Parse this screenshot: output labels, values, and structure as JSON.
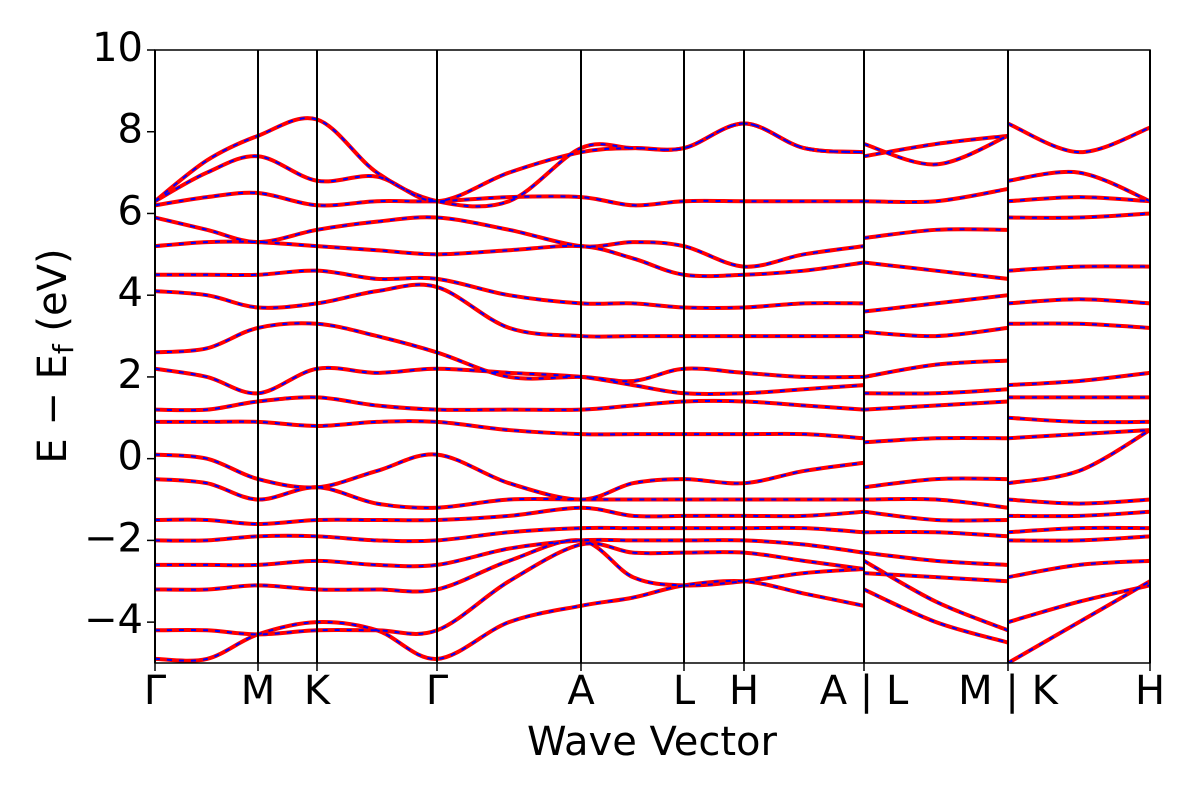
{
  "chart_data": {
    "type": "line",
    "xlabel": "Wave Vector",
    "ylabel": [
      "E − E",
      "f",
      " (eV)"
    ],
    "line_color": "#ff0000",
    "dash_color": "#0000ff",
    "xlim": [
      0,
      9.95
    ],
    "ylim": [
      -5,
      10
    ],
    "xticks": [
      {
        "value": 0,
        "label": "Γ"
      },
      {
        "value": 1.03,
        "label": "M"
      },
      {
        "value": 1.62,
        "label": "K"
      },
      {
        "value": 2.82,
        "label": "Γ"
      },
      {
        "value": 4.26,
        "label": "A"
      },
      {
        "value": 5.29,
        "label": "L"
      },
      {
        "value": 5.89,
        "label": "H"
      },
      {
        "value": 7.09,
        "label": "A | L"
      },
      {
        "value": 8.53,
        "label": "M | K"
      },
      {
        "value": 9.95,
        "label": "H"
      }
    ],
    "yticks": [
      {
        "value": -4,
        "label": "−4"
      },
      {
        "value": -2,
        "label": "−2"
      },
      0,
      2,
      4,
      6,
      8,
      10
    ],
    "x": [
      0,
      0.52,
      1.03,
      1.62,
      2.22,
      2.82,
      3.54,
      4.26,
      4.78,
      5.29,
      5.89,
      6.49,
      7.09,
      7.09,
      7.09,
      7.81,
      8.53,
      8.53,
      8.53,
      9.24,
      9.95
    ],
    "series": [
      {
        "values": [
          -4.9,
          -4.9,
          -4.3,
          -4.0,
          -4.2,
          -4.9,
          -4.0,
          -3.6,
          -3.4,
          -3.1,
          -3.0,
          -3.3,
          -3.6,
          null,
          -3.2,
          -4.0,
          -4.5,
          null,
          -5.0,
          -4.0,
          -3.0
        ]
      },
      {
        "values": [
          -4.2,
          -4.2,
          -4.3,
          -4.2,
          -4.2,
          -4.2,
          -3.0,
          -2.1,
          -2.3,
          -2.3,
          -2.3,
          -2.5,
          -2.7,
          null,
          -2.8,
          -2.9,
          -3.0,
          null,
          -4.0,
          -3.5,
          -3.1
        ]
      },
      {
        "values": [
          -3.2,
          -3.2,
          -3.1,
          -3.2,
          -3.2,
          -3.2,
          -2.5,
          -2.0,
          -2.9,
          -3.1,
          -3.0,
          -2.8,
          -2.7,
          null,
          -2.5,
          -3.5,
          -4.2,
          null,
          -2.9,
          -2.6,
          -2.5
        ]
      },
      {
        "values": [
          -2.6,
          -2.6,
          -2.6,
          -2.5,
          -2.6,
          -2.6,
          -2.2,
          -2.0,
          -2.0,
          -2.0,
          -2.0,
          -2.1,
          -2.3,
          null,
          -2.3,
          -2.5,
          -2.6,
          null,
          -2.0,
          -2.0,
          -1.9
        ]
      },
      {
        "values": [
          -2.0,
          -2.0,
          -1.9,
          -1.9,
          -2.0,
          -2.0,
          -1.8,
          -1.7,
          -1.7,
          -1.7,
          -1.7,
          -1.7,
          -1.8,
          null,
          -1.8,
          -1.8,
          -1.9,
          null,
          -1.8,
          -1.7,
          -1.7
        ]
      },
      {
        "values": [
          -1.5,
          -1.5,
          -1.6,
          -1.5,
          -1.5,
          -1.5,
          -1.4,
          -1.2,
          -1.4,
          -1.4,
          -1.4,
          -1.4,
          -1.3,
          null,
          -1.3,
          -1.5,
          -1.5,
          null,
          -1.4,
          -1.4,
          -1.3
        ]
      },
      {
        "values": [
          -0.5,
          -0.6,
          -1.0,
          -0.7,
          -1.1,
          -1.2,
          -1.0,
          -1.0,
          -1.0,
          -1.0,
          -1.0,
          -1.0,
          -1.0,
          null,
          -1.0,
          -1.0,
          -1.2,
          null,
          -1.0,
          -1.1,
          -1.0
        ]
      },
      {
        "values": [
          0.1,
          0.0,
          -0.5,
          -0.7,
          -0.3,
          0.1,
          -0.6,
          -1.0,
          -0.6,
          -0.5,
          -0.6,
          -0.3,
          -0.1,
          null,
          -0.7,
          -0.5,
          -0.5,
          null,
          -0.6,
          -0.3,
          0.7
        ]
      },
      {
        "values": [
          0.9,
          0.9,
          0.9,
          0.8,
          0.9,
          0.9,
          0.7,
          0.6,
          0.6,
          0.6,
          0.6,
          0.6,
          0.5,
          null,
          0.4,
          0.5,
          0.5,
          null,
          0.5,
          0.6,
          0.7
        ]
      },
      {
        "values": [
          1.2,
          1.2,
          1.4,
          1.5,
          1.3,
          1.2,
          1.2,
          1.2,
          1.3,
          1.4,
          1.4,
          1.3,
          1.2,
          null,
          1.2,
          1.3,
          1.4,
          null,
          1.0,
          0.9,
          0.9
        ]
      },
      {
        "values": [
          2.2,
          2.0,
          1.6,
          2.2,
          2.1,
          2.2,
          2.1,
          2.0,
          1.8,
          1.6,
          1.6,
          1.7,
          1.8,
          null,
          1.6,
          1.6,
          1.7,
          null,
          1.5,
          1.5,
          1.5
        ]
      },
      {
        "values": [
          2.6,
          2.7,
          3.2,
          3.3,
          3.0,
          2.6,
          2.0,
          2.0,
          1.9,
          2.2,
          2.1,
          2.0,
          2.0,
          null,
          2.0,
          2.3,
          2.4,
          null,
          1.8,
          1.9,
          2.1
        ]
      },
      {
        "values": [
          4.1,
          4.0,
          3.7,
          3.8,
          4.1,
          4.2,
          3.2,
          3.0,
          3.0,
          3.0,
          3.0,
          3.0,
          3.0,
          null,
          3.1,
          3.0,
          3.2,
          null,
          3.3,
          3.3,
          3.2
        ]
      },
      {
        "values": [
          4.5,
          4.5,
          4.5,
          4.6,
          4.4,
          4.4,
          4.0,
          3.8,
          3.8,
          3.7,
          3.7,
          3.8,
          3.8,
          null,
          3.6,
          3.8,
          4.0,
          null,
          3.8,
          3.9,
          3.8
        ]
      },
      {
        "values": [
          5.2,
          5.3,
          5.3,
          5.2,
          5.1,
          5.0,
          5.1,
          5.2,
          4.9,
          4.5,
          4.5,
          4.6,
          4.8,
          null,
          4.8,
          4.6,
          4.4,
          null,
          4.6,
          4.7,
          4.7
        ]
      },
      {
        "values": [
          5.9,
          5.6,
          5.3,
          5.6,
          5.8,
          5.9,
          5.6,
          5.2,
          5.3,
          5.2,
          4.7,
          5.0,
          5.2,
          null,
          5.4,
          5.6,
          5.6,
          null,
          5.9,
          5.9,
          6.0
        ]
      },
      {
        "values": [
          6.2,
          6.4,
          6.5,
          6.2,
          6.3,
          6.3,
          6.4,
          6.4,
          6.2,
          6.3,
          6.3,
          6.3,
          6.3,
          null,
          6.3,
          6.3,
          6.6,
          null,
          6.3,
          6.4,
          6.3
        ]
      },
      {
        "values": [
          6.3,
          7.0,
          7.4,
          6.8,
          6.9,
          6.3,
          7.0,
          7.5,
          7.6,
          7.6,
          8.2,
          7.6,
          7.5,
          null,
          7.7,
          7.2,
          7.9,
          null,
          8.2,
          7.5,
          8.1
        ]
      },
      {
        "values": [
          6.3,
          7.3,
          7.9,
          8.3,
          7.0,
          6.3,
          6.3,
          7.6,
          7.6,
          7.6,
          8.2,
          7.6,
          7.5,
          null,
          7.4,
          7.7,
          7.9,
          null,
          6.8,
          7.0,
          6.3
        ]
      }
    ]
  }
}
